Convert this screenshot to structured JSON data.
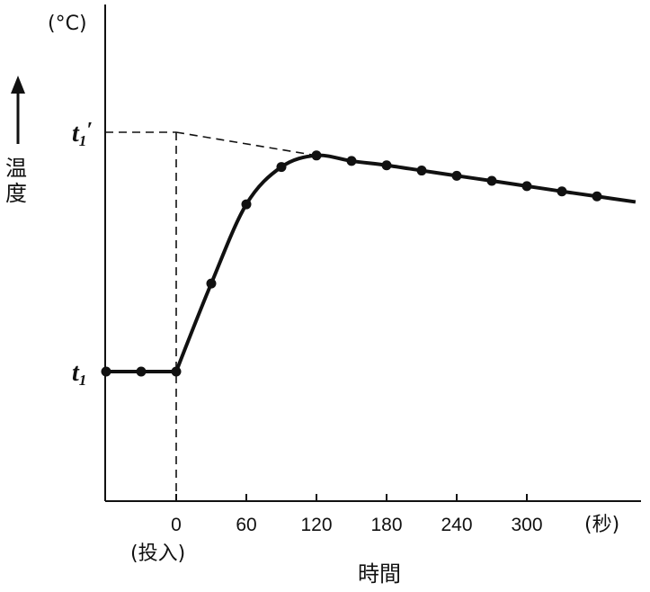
{
  "chart_data": {
    "type": "line",
    "ylabel": "温度",
    "yunit": "(°C)",
    "xlabel": "時間",
    "xunit": "(秒)",
    "x_zero_note": "(投入)",
    "x_ticks": [
      "0",
      "60",
      "120",
      "180",
      "240",
      "300"
    ],
    "y_tick_labels": {
      "t1": "t",
      "t1_sub": "1",
      "t1p_prime": "′"
    },
    "xlim": [
      -60,
      390
    ],
    "grid": false,
    "series": [
      {
        "values": [
          {
            "x": -60,
            "y": 0.0
          },
          {
            "x": -30,
            "y": 0.0
          },
          {
            "x": 0,
            "y": 0.0
          },
          {
            "x": 30,
            "y": 0.368
          },
          {
            "x": 60,
            "y": 0.699
          },
          {
            "x": 90,
            "y": 0.855
          },
          {
            "x": 120,
            "y": 0.903
          },
          {
            "x": 150,
            "y": 0.88
          },
          {
            "x": 180,
            "y": 0.862
          },
          {
            "x": 210,
            "y": 0.84
          },
          {
            "x": 240,
            "y": 0.818
          },
          {
            "x": 270,
            "y": 0.797
          },
          {
            "x": 300,
            "y": 0.775
          },
          {
            "x": 330,
            "y": 0.753
          },
          {
            "x": 360,
            "y": 0.732
          }
        ]
      }
    ],
    "extrapolation": {
      "from": {
        "x": 0,
        "y": 1.0
      },
      "to": {
        "x": 120,
        "y": 0.903
      }
    },
    "t1_value": 0.0,
    "t1p_value": 1.0
  }
}
